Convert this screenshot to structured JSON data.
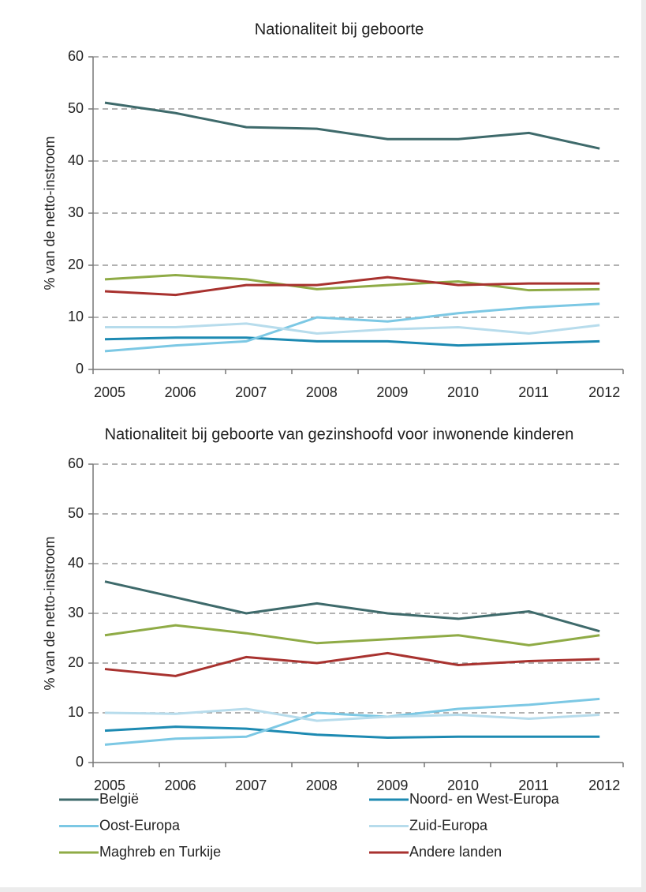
{
  "chart_data": [
    {
      "type": "line",
      "title": "Nationaliteit bij geboorte",
      "ylabel": "% van de netto-instroom",
      "categories": [
        "2005",
        "2006",
        "2007",
        "2008",
        "2009",
        "2010",
        "2011",
        "2012"
      ],
      "ylim": [
        0,
        60
      ],
      "yticks": [
        0,
        10,
        20,
        30,
        40,
        50,
        60
      ],
      "grid": true,
      "series": [
        {
          "name": "België",
          "color": "#3e6a6b",
          "values": [
            51.2,
            49.2,
            46.5,
            46.2,
            44.2,
            44.2,
            45.4,
            42.4
          ]
        },
        {
          "name": "Noord- en West-Europa",
          "color": "#1d8ab2",
          "values": [
            5.8,
            6.1,
            6.1,
            5.4,
            5.4,
            4.6,
            5.0,
            5.4
          ]
        },
        {
          "name": "Oost-Europa",
          "color": "#7cc8e4",
          "values": [
            3.5,
            4.6,
            5.4,
            10.0,
            9.2,
            10.8,
            11.9,
            12.6
          ]
        },
        {
          "name": "Zuid-Europa",
          "color": "#b7dcec",
          "values": [
            8.1,
            8.1,
            8.8,
            6.9,
            7.7,
            8.1,
            6.9,
            8.5
          ]
        },
        {
          "name": "Maghreb en Turkije",
          "color": "#8fab46",
          "values": [
            17.3,
            18.1,
            17.3,
            15.4,
            16.2,
            16.9,
            15.2,
            15.4
          ]
        },
        {
          "name": "Andere landen",
          "color": "#a8322f",
          "values": [
            15.0,
            14.3,
            16.2,
            16.2,
            17.7,
            16.2,
            16.5,
            16.5
          ]
        }
      ]
    },
    {
      "type": "line",
      "title": "Nationaliteit bij geboorte van gezinshoofd voor inwonende kinderen",
      "ylabel": "% van de netto-instroom",
      "categories": [
        "2005",
        "2006",
        "2007",
        "2008",
        "2009",
        "2010",
        "2011",
        "2012"
      ],
      "ylim": [
        0,
        60
      ],
      "yticks": [
        0,
        10,
        20,
        30,
        40,
        50,
        60
      ],
      "grid": true,
      "series": [
        {
          "name": "België",
          "color": "#3e6a6b",
          "values": [
            36.4,
            33.2,
            30.0,
            32.0,
            30.0,
            28.9,
            30.4,
            26.4
          ]
        },
        {
          "name": "Noord- en West-Europa",
          "color": "#1d8ab2",
          "values": [
            6.4,
            7.2,
            6.8,
            5.6,
            5.0,
            5.2,
            5.2,
            5.2
          ]
        },
        {
          "name": "Oost-Europa",
          "color": "#7cc8e4",
          "values": [
            3.6,
            4.8,
            5.2,
            10.0,
            9.2,
            10.8,
            11.6,
            12.8
          ]
        },
        {
          "name": "Zuid-Europa",
          "color": "#b7dcec",
          "values": [
            10.0,
            9.8,
            10.8,
            8.4,
            9.2,
            9.6,
            8.8,
            9.6
          ]
        },
        {
          "name": "Maghreb en Turkije",
          "color": "#8fab46",
          "values": [
            25.6,
            27.6,
            26.0,
            24.0,
            24.8,
            25.6,
            23.6,
            25.6
          ]
        },
        {
          "name": "Andere landen",
          "color": "#a8322f",
          "values": [
            18.8,
            17.4,
            21.2,
            20.0,
            22.0,
            19.6,
            20.4,
            20.8
          ]
        }
      ]
    }
  ]
}
